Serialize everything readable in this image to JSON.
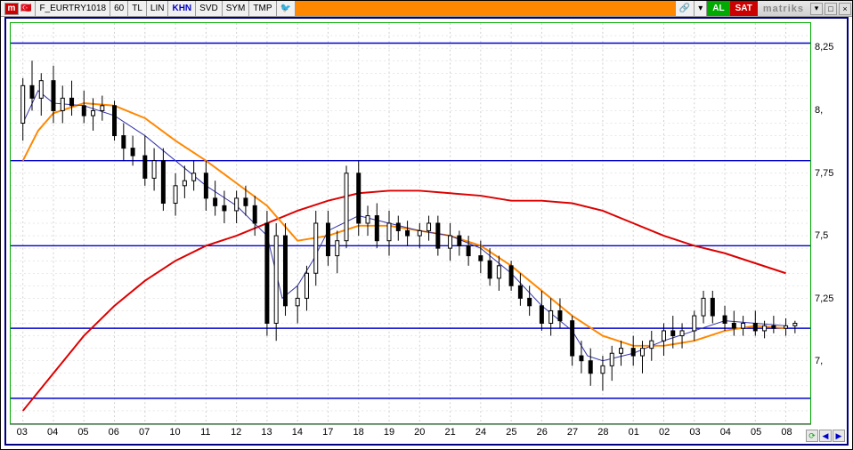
{
  "titlebar": {
    "logo": "m",
    "symbol": "F_EURTRY1018",
    "interval": "60",
    "tabs": [
      "TL",
      "LIN",
      "KHN",
      "SVD",
      "SYM",
      "TMP"
    ],
    "active_tab_index": 2,
    "al": "AL",
    "sat": "SAT",
    "brand": "matriks",
    "min": "▾",
    "max": "□",
    "close": "×"
  },
  "chart": {
    "type": "candlestick",
    "background_color": "#ffffff",
    "border_color": "#00aa00",
    "outer_border_color": "#000080",
    "vgrid_color": "#d0d0d0",
    "hgrid_color": "#d0d0d0",
    "grid_dash": "2,3",
    "ylim": [
      6.75,
      8.35
    ],
    "yticks": [
      7.0,
      7.25,
      7.5,
      7.75,
      8.0,
      8.25
    ],
    "ytick_labels": [
      "7,",
      "7,25",
      "7,5",
      "7,75",
      "8,",
      "8,25"
    ],
    "xticks": [
      "03",
      "04",
      "05",
      "06",
      "07",
      "10",
      "11",
      "12",
      "13",
      "14",
      "17",
      "18",
      "19",
      "20",
      "21",
      "24",
      "25",
      "26",
      "27",
      "28",
      "01",
      "02",
      "03",
      "04",
      "05",
      "08"
    ],
    "xcount": 26,
    "hlines": [
      {
        "y": 8.27,
        "color": "#0000cc",
        "width": 1.5
      },
      {
        "y": 7.8,
        "color": "#0000cc",
        "width": 1.5
      },
      {
        "y": 7.46,
        "color": "#0000cc",
        "width": 1.5
      },
      {
        "y": 7.13,
        "color": "#0000cc",
        "width": 1.5
      },
      {
        "y": 6.85,
        "color": "#0000cc",
        "width": 1.5
      }
    ],
    "ma_lines": [
      {
        "name": "ma-slow-red",
        "color": "#dd0000",
        "width": 2,
        "points": [
          [
            0,
            6.8
          ],
          [
            1,
            6.95
          ],
          [
            2,
            7.1
          ],
          [
            3,
            7.22
          ],
          [
            4,
            7.32
          ],
          [
            5,
            7.4
          ],
          [
            6,
            7.46
          ],
          [
            7,
            7.5
          ],
          [
            8,
            7.55
          ],
          [
            9,
            7.6
          ],
          [
            10,
            7.64
          ],
          [
            11,
            7.67
          ],
          [
            12,
            7.68
          ],
          [
            13,
            7.68
          ],
          [
            14,
            7.67
          ],
          [
            15,
            7.66
          ],
          [
            16,
            7.64
          ],
          [
            17,
            7.64
          ],
          [
            18,
            7.63
          ],
          [
            19,
            7.6
          ],
          [
            20,
            7.55
          ],
          [
            21,
            7.5
          ],
          [
            22,
            7.46
          ],
          [
            23,
            7.43
          ],
          [
            24,
            7.39
          ],
          [
            25,
            7.35
          ]
        ]
      },
      {
        "name": "ma-mid-orange",
        "color": "#ff8800",
        "width": 2,
        "points": [
          [
            0,
            7.8
          ],
          [
            0.5,
            7.92
          ],
          [
            1,
            7.99
          ],
          [
            2,
            8.03
          ],
          [
            3,
            8.02
          ],
          [
            4,
            7.97
          ],
          [
            5,
            7.88
          ],
          [
            6,
            7.8
          ],
          [
            7,
            7.71
          ],
          [
            8,
            7.62
          ],
          [
            9,
            7.48
          ],
          [
            10,
            7.5
          ],
          [
            11,
            7.54
          ],
          [
            12,
            7.54
          ],
          [
            13,
            7.52
          ],
          [
            14,
            7.5
          ],
          [
            15,
            7.46
          ],
          [
            16,
            7.38
          ],
          [
            17,
            7.28
          ],
          [
            18,
            7.18
          ],
          [
            19,
            7.1
          ],
          [
            20,
            7.06
          ],
          [
            21,
            7.06
          ],
          [
            22,
            7.08
          ],
          [
            23,
            7.12
          ],
          [
            24,
            7.14
          ],
          [
            25,
            7.13
          ]
        ]
      },
      {
        "name": "ma-fast-blue",
        "color": "#3333aa",
        "width": 1,
        "points": [
          [
            0,
            7.95
          ],
          [
            0.5,
            8.08
          ],
          [
            1,
            8.03
          ],
          [
            2,
            8.02
          ],
          [
            3,
            7.98
          ],
          [
            4,
            7.9
          ],
          [
            5,
            7.8
          ],
          [
            6,
            7.7
          ],
          [
            7,
            7.62
          ],
          [
            8,
            7.5
          ],
          [
            8.5,
            7.25
          ],
          [
            9,
            7.3
          ],
          [
            9.5,
            7.4
          ],
          [
            10,
            7.52
          ],
          [
            11,
            7.58
          ],
          [
            12,
            7.55
          ],
          [
            13,
            7.52
          ],
          [
            14,
            7.5
          ],
          [
            15,
            7.45
          ],
          [
            16,
            7.35
          ],
          [
            17,
            7.22
          ],
          [
            18,
            7.12
          ],
          [
            18.5,
            7.02
          ],
          [
            19,
            7.0
          ],
          [
            20,
            7.03
          ],
          [
            21,
            7.08
          ],
          [
            22,
            7.12
          ],
          [
            23,
            7.16
          ],
          [
            24,
            7.15
          ],
          [
            25,
            7.14
          ]
        ]
      }
    ],
    "candles": [
      {
        "x": 0.0,
        "o": 7.95,
        "h": 8.13,
        "l": 7.88,
        "c": 8.1
      },
      {
        "x": 0.3,
        "o": 8.1,
        "h": 8.2,
        "l": 8.0,
        "c": 8.05
      },
      {
        "x": 0.6,
        "o": 8.05,
        "h": 8.15,
        "l": 7.98,
        "c": 8.12
      },
      {
        "x": 1.0,
        "o": 8.12,
        "h": 8.18,
        "l": 7.95,
        "c": 8.0
      },
      {
        "x": 1.3,
        "o": 8.0,
        "h": 8.1,
        "l": 7.95,
        "c": 8.05
      },
      {
        "x": 1.6,
        "o": 8.05,
        "h": 8.12,
        "l": 7.98,
        "c": 8.02
      },
      {
        "x": 2.0,
        "o": 8.02,
        "h": 8.08,
        "l": 7.95,
        "c": 7.98
      },
      {
        "x": 2.3,
        "o": 7.98,
        "h": 8.05,
        "l": 7.92,
        "c": 8.0
      },
      {
        "x": 2.6,
        "o": 8.0,
        "h": 8.06,
        "l": 7.96,
        "c": 8.02
      },
      {
        "x": 3.0,
        "o": 8.02,
        "h": 8.04,
        "l": 7.88,
        "c": 7.9
      },
      {
        "x": 3.3,
        "o": 7.9,
        "h": 7.95,
        "l": 7.8,
        "c": 7.85
      },
      {
        "x": 3.6,
        "o": 7.85,
        "h": 7.9,
        "l": 7.78,
        "c": 7.82
      },
      {
        "x": 4.0,
        "o": 7.82,
        "h": 7.9,
        "l": 7.7,
        "c": 7.73
      },
      {
        "x": 4.3,
        "o": 7.73,
        "h": 7.85,
        "l": 7.68,
        "c": 7.8
      },
      {
        "x": 4.6,
        "o": 7.8,
        "h": 7.85,
        "l": 7.6,
        "c": 7.63
      },
      {
        "x": 5.0,
        "o": 7.63,
        "h": 7.75,
        "l": 7.58,
        "c": 7.7
      },
      {
        "x": 5.3,
        "o": 7.7,
        "h": 7.78,
        "l": 7.65,
        "c": 7.72
      },
      {
        "x": 5.6,
        "o": 7.72,
        "h": 7.8,
        "l": 7.68,
        "c": 7.75
      },
      {
        "x": 6.0,
        "o": 7.75,
        "h": 7.8,
        "l": 7.6,
        "c": 7.65
      },
      {
        "x": 6.3,
        "o": 7.65,
        "h": 7.72,
        "l": 7.58,
        "c": 7.62
      },
      {
        "x": 6.6,
        "o": 7.62,
        "h": 7.68,
        "l": 7.55,
        "c": 7.6
      },
      {
        "x": 7.0,
        "o": 7.6,
        "h": 7.68,
        "l": 7.55,
        "c": 7.65
      },
      {
        "x": 7.3,
        "o": 7.65,
        "h": 7.7,
        "l": 7.58,
        "c": 7.62
      },
      {
        "x": 7.6,
        "o": 7.62,
        "h": 7.66,
        "l": 7.5,
        "c": 7.55
      },
      {
        "x": 8.0,
        "o": 7.55,
        "h": 7.6,
        "l": 7.1,
        "c": 7.15
      },
      {
        "x": 8.3,
        "o": 7.15,
        "h": 7.55,
        "l": 7.08,
        "c": 7.5
      },
      {
        "x": 8.6,
        "o": 7.5,
        "h": 7.55,
        "l": 7.18,
        "c": 7.22
      },
      {
        "x": 9.0,
        "o": 7.22,
        "h": 7.3,
        "l": 7.15,
        "c": 7.25
      },
      {
        "x": 9.3,
        "o": 7.25,
        "h": 7.38,
        "l": 7.2,
        "c": 7.35
      },
      {
        "x": 9.6,
        "o": 7.35,
        "h": 7.6,
        "l": 7.3,
        "c": 7.55
      },
      {
        "x": 10.0,
        "o": 7.55,
        "h": 7.6,
        "l": 7.38,
        "c": 7.42
      },
      {
        "x": 10.3,
        "o": 7.42,
        "h": 7.52,
        "l": 7.35,
        "c": 7.48
      },
      {
        "x": 10.6,
        "o": 7.48,
        "h": 7.78,
        "l": 7.45,
        "c": 7.75
      },
      {
        "x": 11.0,
        "o": 7.75,
        "h": 7.8,
        "l": 7.5,
        "c": 7.55
      },
      {
        "x": 11.3,
        "o": 7.55,
        "h": 7.62,
        "l": 7.5,
        "c": 7.58
      },
      {
        "x": 11.6,
        "o": 7.58,
        "h": 7.63,
        "l": 7.45,
        "c": 7.48
      },
      {
        "x": 12.0,
        "o": 7.48,
        "h": 7.6,
        "l": 7.42,
        "c": 7.55
      },
      {
        "x": 12.3,
        "o": 7.55,
        "h": 7.58,
        "l": 7.48,
        "c": 7.52
      },
      {
        "x": 12.6,
        "o": 7.52,
        "h": 7.56,
        "l": 7.46,
        "c": 7.5
      },
      {
        "x": 13.0,
        "o": 7.5,
        "h": 7.55,
        "l": 7.45,
        "c": 7.52
      },
      {
        "x": 13.3,
        "o": 7.52,
        "h": 7.58,
        "l": 7.48,
        "c": 7.55
      },
      {
        "x": 13.6,
        "o": 7.55,
        "h": 7.58,
        "l": 7.42,
        "c": 7.45
      },
      {
        "x": 14.0,
        "o": 7.45,
        "h": 7.55,
        "l": 7.4,
        "c": 7.5
      },
      {
        "x": 14.3,
        "o": 7.5,
        "h": 7.52,
        "l": 7.42,
        "c": 7.46
      },
      {
        "x": 14.6,
        "o": 7.46,
        "h": 7.5,
        "l": 7.38,
        "c": 7.42
      },
      {
        "x": 15.0,
        "o": 7.42,
        "h": 7.48,
        "l": 7.35,
        "c": 7.4
      },
      {
        "x": 15.3,
        "o": 7.4,
        "h": 7.45,
        "l": 7.3,
        "c": 7.33
      },
      {
        "x": 15.6,
        "o": 7.33,
        "h": 7.42,
        "l": 7.28,
        "c": 7.38
      },
      {
        "x": 16.0,
        "o": 7.38,
        "h": 7.4,
        "l": 7.28,
        "c": 7.3
      },
      {
        "x": 16.3,
        "o": 7.3,
        "h": 7.35,
        "l": 7.22,
        "c": 7.25
      },
      {
        "x": 16.6,
        "o": 7.25,
        "h": 7.3,
        "l": 7.18,
        "c": 7.22
      },
      {
        "x": 17.0,
        "o": 7.22,
        "h": 7.28,
        "l": 7.12,
        "c": 7.15
      },
      {
        "x": 17.3,
        "o": 7.15,
        "h": 7.25,
        "l": 7.1,
        "c": 7.2
      },
      {
        "x": 17.6,
        "o": 7.2,
        "h": 7.25,
        "l": 7.13,
        "c": 7.16
      },
      {
        "x": 18.0,
        "o": 7.16,
        "h": 7.18,
        "l": 6.98,
        "c": 7.02
      },
      {
        "x": 18.3,
        "o": 7.02,
        "h": 7.08,
        "l": 6.95,
        "c": 7.0
      },
      {
        "x": 18.6,
        "o": 7.0,
        "h": 7.05,
        "l": 6.9,
        "c": 6.95
      },
      {
        "x": 19.0,
        "o": 6.95,
        "h": 7.02,
        "l": 6.88,
        "c": 6.98
      },
      {
        "x": 19.3,
        "o": 6.98,
        "h": 7.06,
        "l": 6.92,
        "c": 7.03
      },
      {
        "x": 19.6,
        "o": 7.03,
        "h": 7.08,
        "l": 6.98,
        "c": 7.05
      },
      {
        "x": 20.0,
        "o": 7.05,
        "h": 7.1,
        "l": 6.98,
        "c": 7.02
      },
      {
        "x": 20.3,
        "o": 7.02,
        "h": 7.08,
        "l": 6.95,
        "c": 7.05
      },
      {
        "x": 20.6,
        "o": 7.05,
        "h": 7.12,
        "l": 7.0,
        "c": 7.08
      },
      {
        "x": 21.0,
        "o": 7.08,
        "h": 7.15,
        "l": 7.02,
        "c": 7.12
      },
      {
        "x": 21.3,
        "o": 7.12,
        "h": 7.18,
        "l": 7.05,
        "c": 7.1
      },
      {
        "x": 21.6,
        "o": 7.1,
        "h": 7.15,
        "l": 7.05,
        "c": 7.12
      },
      {
        "x": 22.0,
        "o": 7.12,
        "h": 7.2,
        "l": 7.08,
        "c": 7.18
      },
      {
        "x": 22.3,
        "o": 7.18,
        "h": 7.28,
        "l": 7.15,
        "c": 7.25
      },
      {
        "x": 22.6,
        "o": 7.25,
        "h": 7.28,
        "l": 7.15,
        "c": 7.18
      },
      {
        "x": 23.0,
        "o": 7.18,
        "h": 7.22,
        "l": 7.12,
        "c": 7.15
      },
      {
        "x": 23.3,
        "o": 7.15,
        "h": 7.2,
        "l": 7.1,
        "c": 7.13
      },
      {
        "x": 23.6,
        "o": 7.13,
        "h": 7.18,
        "l": 7.1,
        "c": 7.15
      },
      {
        "x": 24.0,
        "o": 7.15,
        "h": 7.2,
        "l": 7.1,
        "c": 7.12
      },
      {
        "x": 24.3,
        "o": 7.12,
        "h": 7.16,
        "l": 7.09,
        "c": 7.14
      },
      {
        "x": 24.6,
        "o": 7.14,
        "h": 7.18,
        "l": 7.11,
        "c": 7.13
      },
      {
        "x": 25.0,
        "o": 7.13,
        "h": 7.17,
        "l": 7.1,
        "c": 7.14
      },
      {
        "x": 25.3,
        "o": 7.14,
        "h": 7.16,
        "l": 7.11,
        "c": 7.15
      }
    ],
    "candle_up_color": "#ffffff",
    "candle_down_color": "#000000",
    "candle_wick_color": "#000000",
    "candle_width": 4
  },
  "nav": {
    "refresh": "⟳",
    "left": "◀",
    "right": "▶"
  }
}
